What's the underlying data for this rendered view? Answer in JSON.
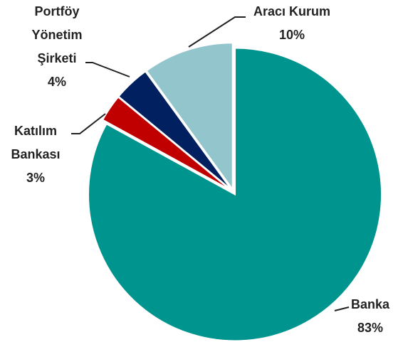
{
  "chart_data": {
    "type": "pie",
    "categories": [
      "Banka",
      "Katılım Bankası",
      "Portföy Yönetim Şirketi",
      "Aracı Kurum"
    ],
    "values": [
      83,
      3,
      4,
      10
    ],
    "value_labels": [
      "83%",
      "3%",
      "4%",
      "10%"
    ],
    "colors": [
      "#00948f",
      "#c00000",
      "#002060",
      "#93c6cc"
    ]
  }
}
